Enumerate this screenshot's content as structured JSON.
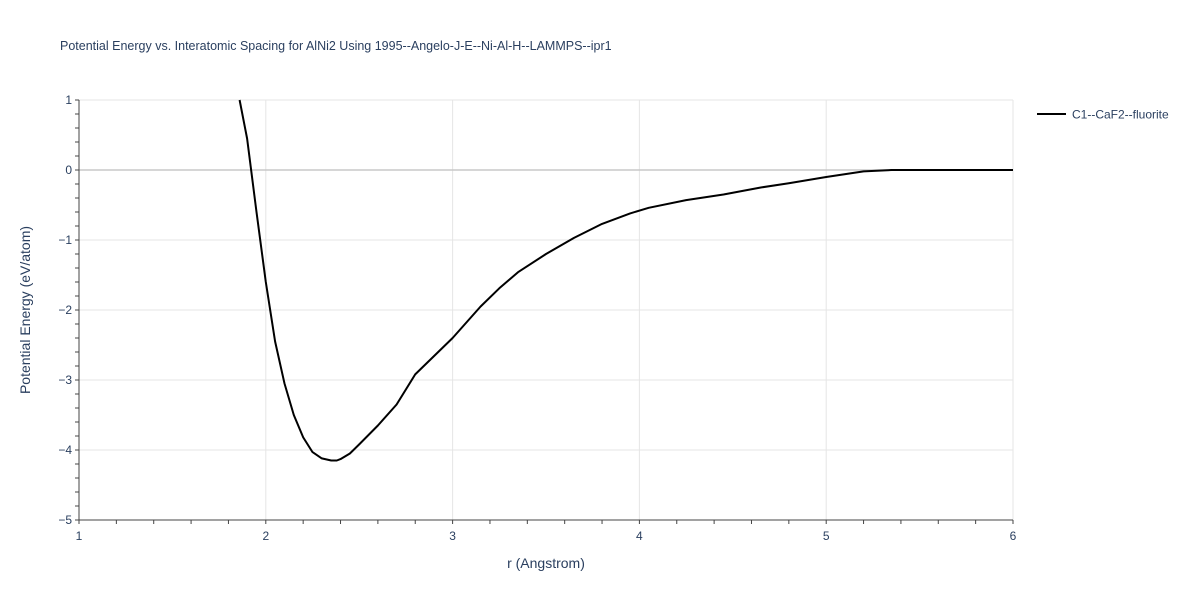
{
  "chart_data": {
    "type": "line",
    "title": "Potential Energy vs. Interatomic Spacing for AlNi2 Using 1995--Angelo-J-E--Ni-Al-H--LAMMPS--ipr1",
    "xlabel": "r (Angstrom)",
    "ylabel": "Potential Energy (eV/atom)",
    "xlim": [
      1,
      6
    ],
    "ylim": [
      -5,
      1
    ],
    "xticks": [
      1,
      2,
      3,
      4,
      5,
      6
    ],
    "yticks": [
      1,
      0,
      -1,
      -2,
      -3,
      -4,
      -5
    ],
    "ytick_labels": [
      "1",
      "0",
      "−1",
      "−2",
      "−3",
      "−4",
      "−5"
    ],
    "grid": true,
    "legend_position": "top-right",
    "series": [
      {
        "name": "C1--CaF2--fluorite",
        "color": "#000000",
        "x": [
          1.86,
          1.9,
          1.95,
          2.0,
          2.05,
          2.1,
          2.15,
          2.2,
          2.25,
          2.3,
          2.35,
          2.38,
          2.4,
          2.45,
          2.5,
          2.6,
          2.7,
          2.8,
          3.0,
          3.15,
          3.25,
          3.35,
          3.5,
          3.65,
          3.8,
          3.95,
          4.05,
          4.25,
          4.45,
          4.55,
          4.65,
          4.8,
          5.0,
          5.2,
          5.35,
          5.5,
          6.0
        ],
        "y": [
          1.0,
          0.45,
          -0.6,
          -1.6,
          -2.45,
          -3.05,
          -3.5,
          -3.82,
          -4.03,
          -4.12,
          -4.15,
          -4.15,
          -4.13,
          -4.05,
          -3.92,
          -3.65,
          -3.35,
          -2.92,
          -2.4,
          -1.95,
          -1.69,
          -1.46,
          -1.2,
          -0.97,
          -0.77,
          -0.62,
          -0.54,
          -0.43,
          -0.35,
          -0.3,
          -0.25,
          -0.19,
          -0.1,
          -0.02,
          0.0,
          0.0,
          0.0
        ]
      }
    ]
  }
}
